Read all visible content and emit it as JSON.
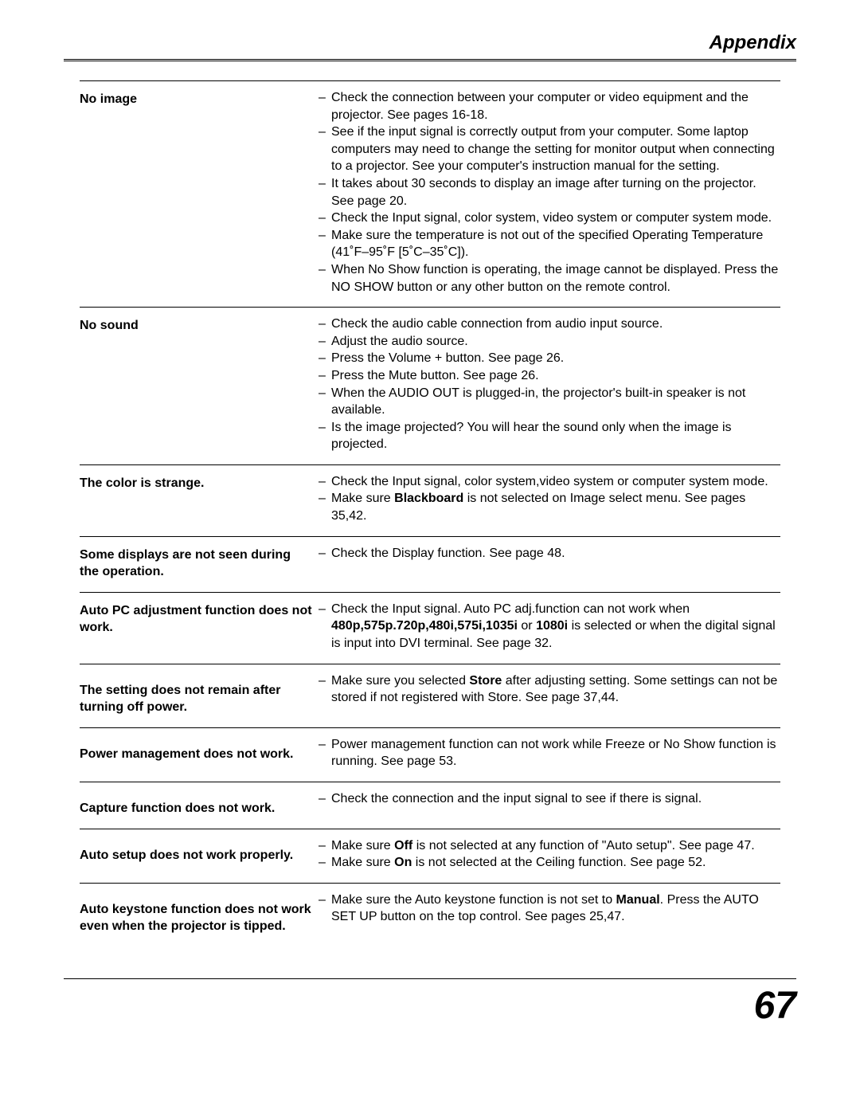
{
  "header": {
    "title": "Appendix"
  },
  "rows": [
    {
      "problem": "No image",
      "solutions": [
        "Check the connection between your computer or video equipment and the projector. See pages 16-18.",
        "See if the input signal is correctly output from your computer. Some laptop computers may need to change the setting for monitor output when connecting to a projector. See your computer's instruction manual for the setting.",
        "It takes about 30 seconds to display an image after turning on the projector. See page 20.",
        "Check the Input signal, color system, video system or computer system mode.",
        "Make sure the temperature is not out of the specified Operating Temperature (41˚F–95˚F [5˚C–35˚C]).",
        "When No Show function is operating, the image cannot be displayed. Press the NO SHOW button or any other button on the remote control."
      ]
    },
    {
      "problem": "No sound",
      "solutions": [
        "Check the audio cable connection from audio input source.",
        "Adjust the audio source.",
        "Press the Volume + button. See page 26.",
        "Press the Mute button. See page 26.",
        "When the AUDIO OUT is plugged-in, the projector's built-in speaker is not available.",
        "Is the image projected? You will hear the sound only when the image is projected."
      ]
    },
    {
      "problem": "The color is strange.",
      "solutions": [
        "Check the Input signal, color system,video system or computer system mode.",
        "Make sure <b class=\"inner\">Blackboard</b> is not selected on Image select menu. See pages 35,42."
      ]
    },
    {
      "problem": "Some displays are not seen during the operation.",
      "solutions": [
        "Check the Display function. See page 48."
      ]
    },
    {
      "problem": "Auto PC adjustment function does not work.",
      "solutions": [
        "Check the Input signal. Auto PC adj.function can not work when <b class=\"inner\">480p,575p.720p,480i,575i,1035i</b> or <b class=\"inner\">1080i</b> is selected or when the digital signal is input into DVI terminal. See page 32."
      ]
    },
    {
      "problem": "The setting does not remain after turning off power.",
      "adjustTop": true,
      "solutions": [
        "Make sure you selected <b class=\"inner\">Store</b> after adjusting setting. Some settings can not be stored if not registered with Store. See page 37,44."
      ]
    },
    {
      "problem": "Power management does not work.",
      "adjustTop": true,
      "solutions": [
        "Power management function can not work while Freeze or No Show function is running. See page 53."
      ]
    },
    {
      "problem": "Capture function does not work.",
      "adjustTop": true,
      "solutions": [
        "Check the connection and the input signal to see if there is signal."
      ]
    },
    {
      "problem": "Auto setup does not work properly.",
      "adjustTop": true,
      "solutions": [
        "Make sure <b class=\"inner\">Off</b> is not selected at any function of \"Auto setup\". See page 47.",
        "Make sure <b class=\"inner\">On</b> is not selected at the Ceiling function. See page 52."
      ]
    },
    {
      "problem": "Auto keystone function does not work even when the projector is tipped.",
      "adjustTop": true,
      "solutions": [
        "Make sure the Auto keystone function is not set to <b class=\"inner\">Manual</b>. Press the AUTO SET UP button on the top control. See pages 25,47."
      ]
    }
  ],
  "footer": {
    "page_number": "67"
  }
}
